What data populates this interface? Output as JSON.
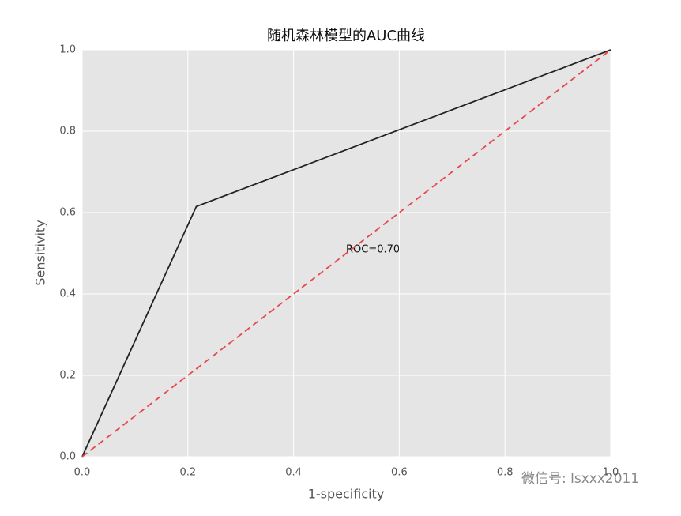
{
  "chart_data": {
    "type": "line",
    "title": "随机森林模型的AUC曲线",
    "xlabel": "1-specificity",
    "ylabel": "Sensitivity",
    "annotation": "ROC=0.70",
    "watermark": "微信号: lsxxx2011",
    "series": [
      {
        "color": "#222222",
        "x": [
          0,
          0.216,
          1
        ],
        "values": [
          0,
          0.615,
          1
        ]
      },
      {
        "color": "#e8474c",
        "dash": true,
        "x": [
          0,
          1
        ],
        "values": [
          0,
          1
        ]
      }
    ],
    "xlim": [
      0,
      1
    ],
    "ylim": [
      0,
      1
    ],
    "xticks": [
      {
        "value": 0,
        "label": "0.0"
      },
      {
        "value": 0.2,
        "label": "0.2"
      },
      {
        "value": 0.4,
        "label": "0.4"
      },
      {
        "value": 0.6,
        "label": "0.6"
      },
      {
        "value": 0.8,
        "label": "0.8"
      },
      {
        "value": 1,
        "label": "1.0"
      }
    ],
    "yticks": [
      {
        "value": 0,
        "label": "0.0"
      },
      {
        "value": 0.2,
        "label": "0.2"
      },
      {
        "value": 0.4,
        "label": "0.4"
      },
      {
        "value": 0.6,
        "label": "0.6"
      },
      {
        "value": 0.8,
        "label": "0.8"
      },
      {
        "value": 1,
        "label": "1.0"
      }
    ],
    "grid": true
  }
}
